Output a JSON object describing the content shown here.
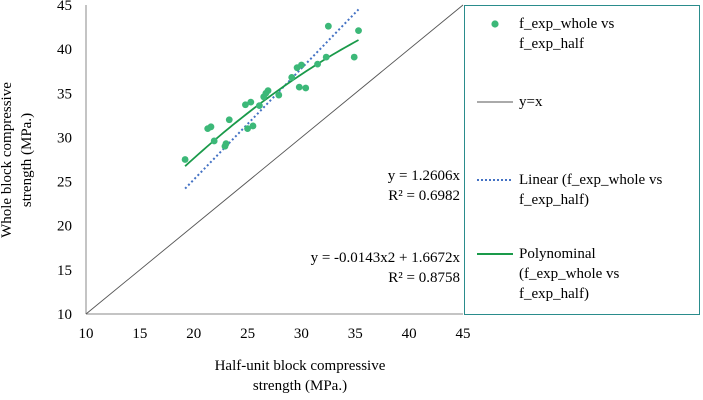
{
  "chart_data": {
    "type": "scatter",
    "xlabel_line1": "Half-unit block compressive",
    "xlabel_line2": "strength (MPa.)",
    "ylabel_line1": "Whole block compressive",
    "ylabel_line2": "strength (MPa.)",
    "xlim": [
      10,
      45
    ],
    "ylim": [
      10,
      45
    ],
    "xticks": [
      10,
      15,
      20,
      25,
      30,
      35,
      40,
      45
    ],
    "yticks": [
      10,
      15,
      20,
      25,
      30,
      35,
      40,
      45
    ],
    "grid": false,
    "series": [
      {
        "name": "f_exp_whole vs f_exp_half",
        "kind": "scatter",
        "color": "#3cb878",
        "x": [
          19.2,
          21.3,
          21.6,
          21.9,
          22.9,
          23.0,
          23.3,
          24.8,
          25.0,
          25.3,
          25.5,
          26.1,
          26.5,
          26.7,
          26.9,
          27.9,
          29.1,
          29.6,
          29.8,
          30.0,
          30.4,
          31.5,
          32.3,
          32.5,
          34.9,
          35.3
        ],
        "y": [
          27.5,
          31.0,
          31.2,
          29.6,
          29.0,
          29.3,
          32.0,
          33.7,
          31.0,
          34.0,
          31.3,
          33.6,
          34.6,
          35.0,
          35.3,
          34.8,
          36.8,
          37.9,
          35.7,
          38.2,
          35.6,
          38.3,
          39.1,
          42.6,
          39.1,
          42.1
        ]
      },
      {
        "name": "y=x",
        "kind": "line",
        "color": "#555555",
        "x": [
          10,
          45
        ],
        "y": [
          10,
          45
        ]
      },
      {
        "name": "Linear (f_exp_whole vs f_exp_half)",
        "kind": "linear_trend",
        "color": "#4472c4",
        "slope": 1.2606,
        "x_range": [
          19.2,
          35.3
        ]
      },
      {
        "name": "Polynominal (f_exp_whole vs f_exp_half)",
        "kind": "poly_trend",
        "color": "#1a9a4a",
        "a2": -0.0143,
        "a1": 1.6672,
        "x_range": [
          19.2,
          35.3
        ]
      }
    ],
    "legend": {
      "position": "right",
      "entries": [
        [
          "f_exp_whole vs",
          "f_exp_half"
        ],
        [
          "y=x"
        ],
        [
          "Linear (f_exp_whole vs",
          "f_exp_half)"
        ],
        [
          "Polynominal",
          "(f_exp_whole vs",
          "f_exp_half)"
        ]
      ]
    },
    "annotations": {
      "linear_eq": "y = 1.2606x",
      "linear_r2": "R² = 0.6982",
      "poly_eq": "y = -0.0143x2 + 1.6672x",
      "poly_r2": "R² = 0.8758"
    }
  }
}
